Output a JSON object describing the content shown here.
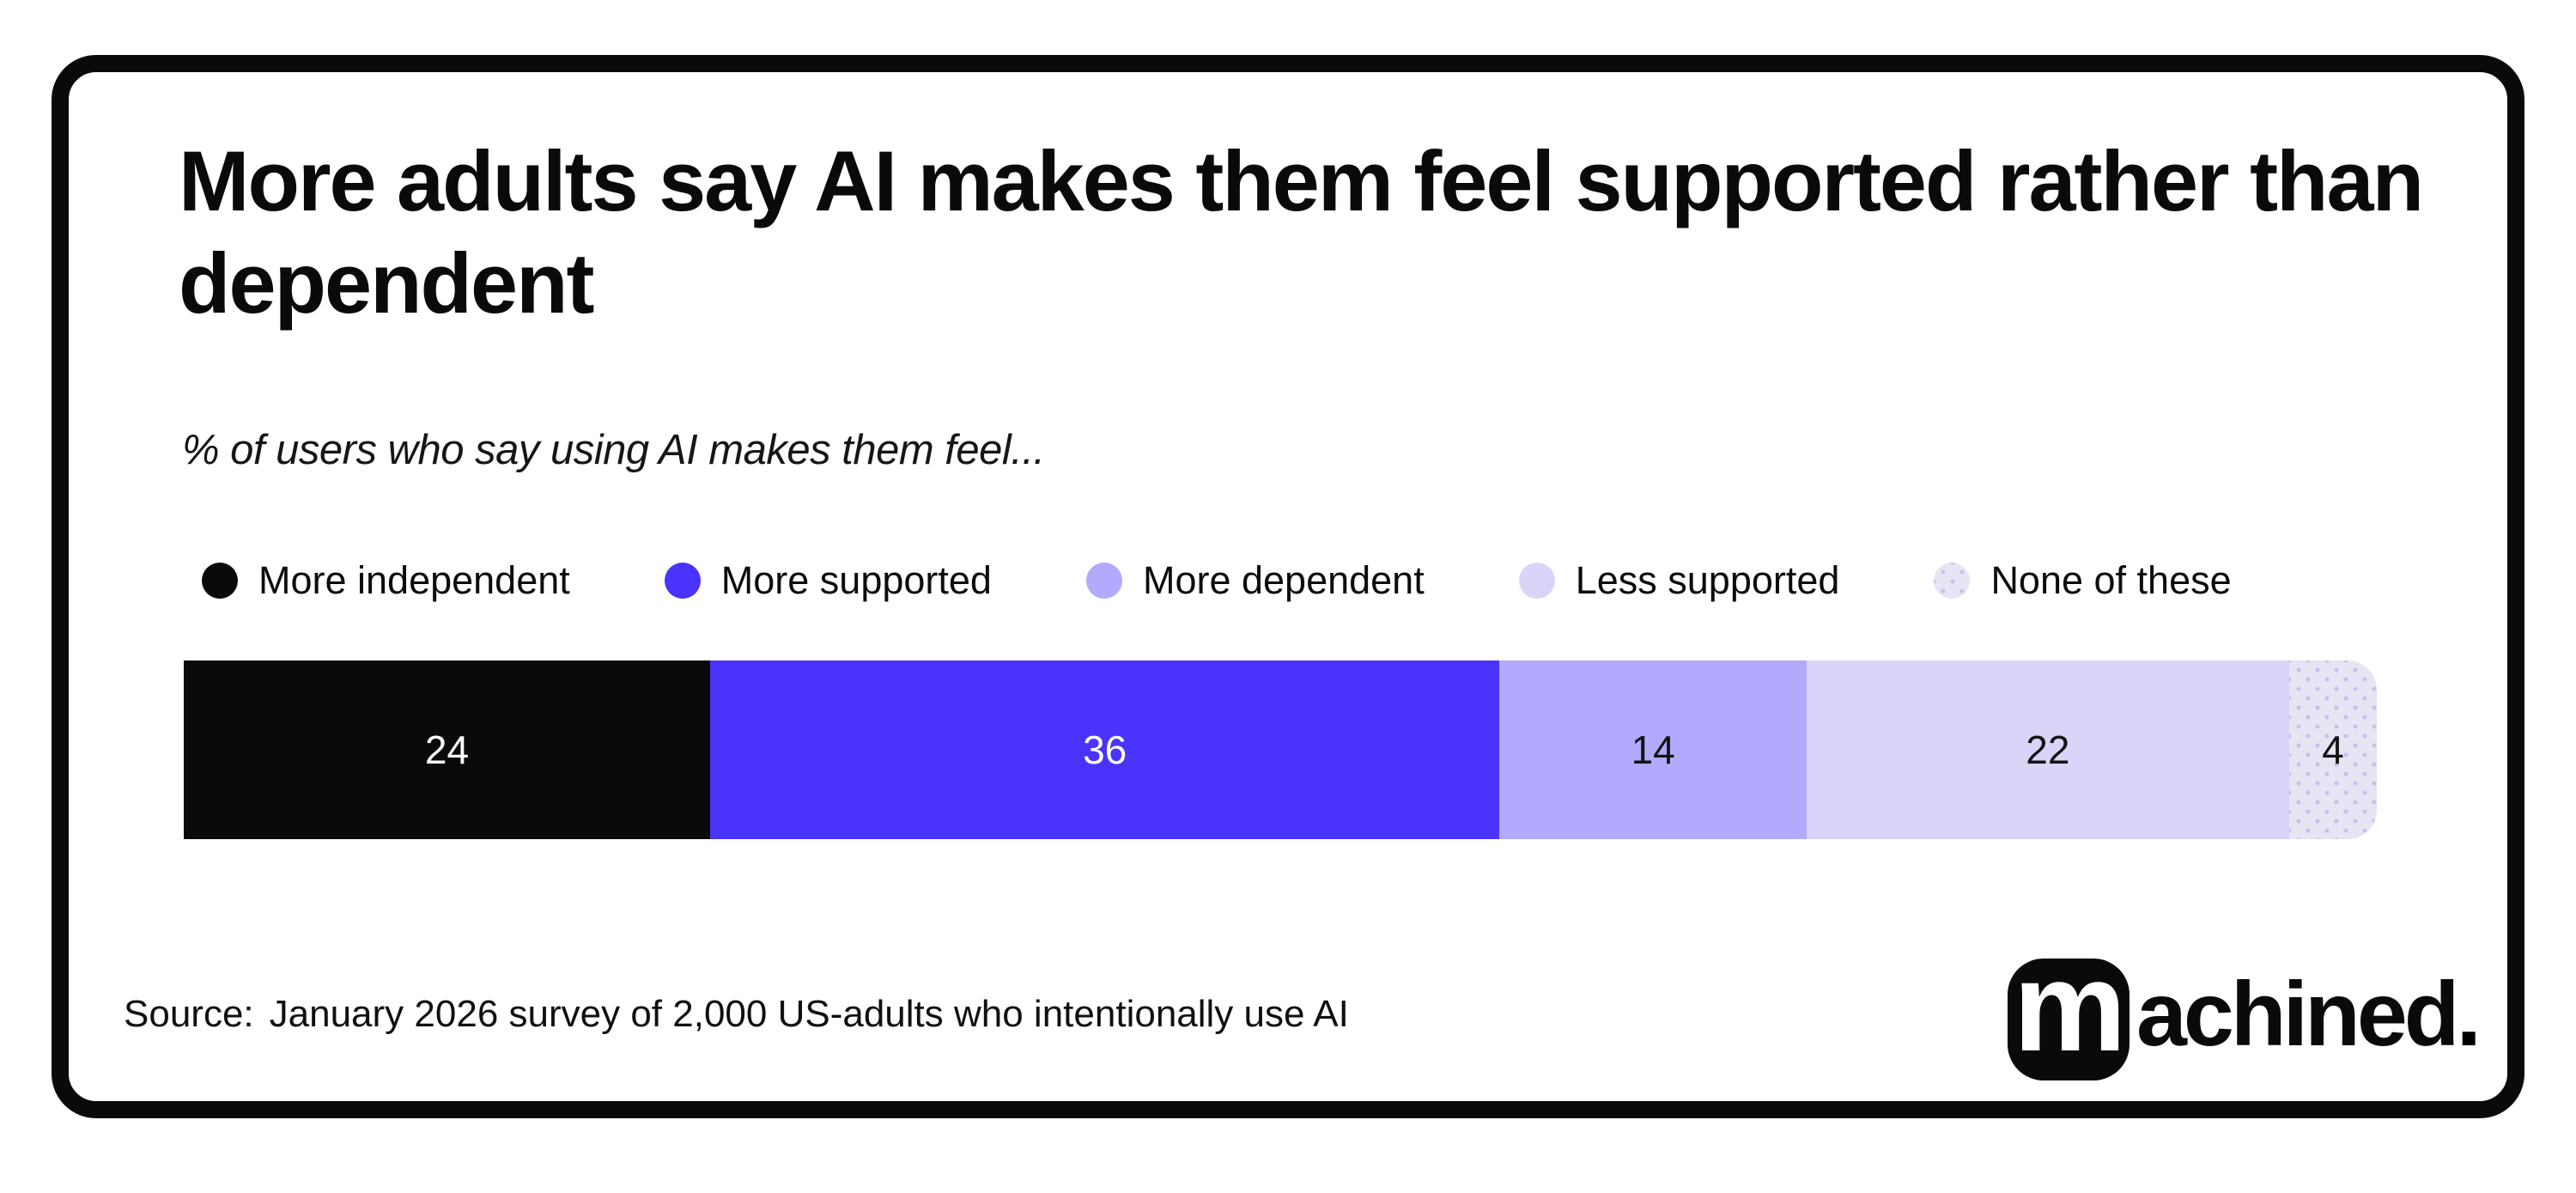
{
  "chart_data": {
    "type": "bar",
    "variant": "horizontal-stacked-100",
    "title": "More adults say AI makes them feel supported rather than dependent",
    "subtitle": "% of users who say using AI makes them feel...",
    "categories": [
      "More independent",
      "More supported",
      "More dependent",
      "Less supported",
      "None of these"
    ],
    "values": [
      24,
      36,
      14,
      22,
      4
    ],
    "colors": [
      "#0a0a0a",
      "#4a33fb",
      "#b2aafd",
      "#dad4f8",
      "#e7e4f3"
    ],
    "value_label_colors": [
      "#ffffff",
      "#ffffff",
      "#141414",
      "#141414",
      "#141414"
    ],
    "patterned": [
      false,
      false,
      false,
      false,
      true
    ],
    "pattern_dot_color": "#c9bfee",
    "legend_position": "top",
    "xlim": [
      0,
      100
    ],
    "grid": false,
    "unit": "%"
  },
  "footer": {
    "source_label": "Source:",
    "source_text": "January 2026 survey of 2,000 US-adults who intentionally use AI",
    "logo": {
      "mark": "m",
      "text": "achined",
      "period": ".",
      "accent_color": "#4733fb"
    }
  }
}
